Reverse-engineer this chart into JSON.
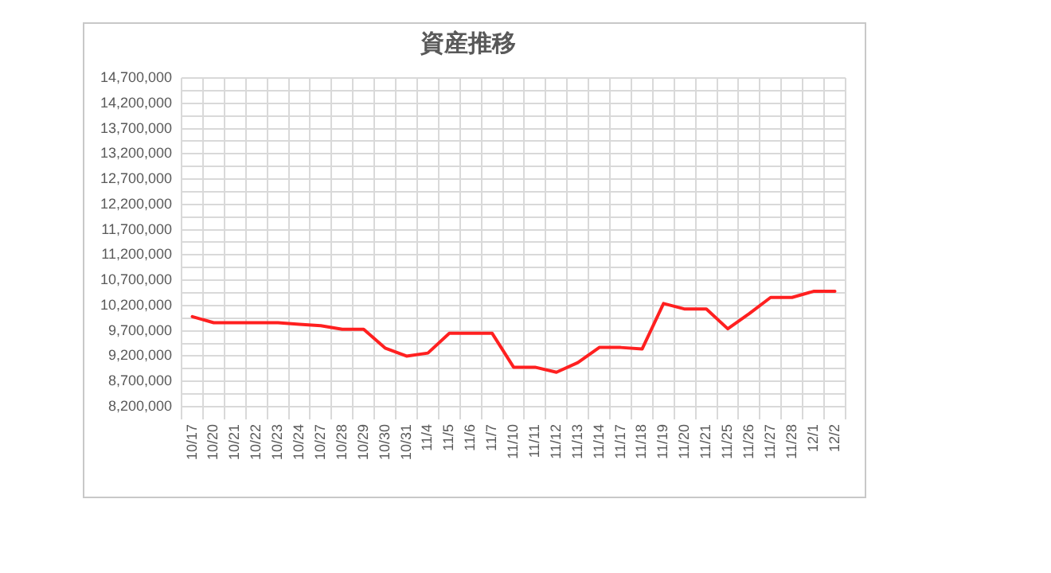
{
  "chart_data": {
    "type": "line",
    "title": "資産推移",
    "categories": [
      "10/17",
      "10/20",
      "10/21",
      "10/22",
      "10/23",
      "10/24",
      "10/27",
      "10/28",
      "10/29",
      "10/30",
      "10/31",
      "11/4",
      "11/5",
      "11/6",
      "11/7",
      "11/10",
      "11/11",
      "11/12",
      "11/13",
      "11/14",
      "11/17",
      "11/18",
      "11/19",
      "11/20",
      "11/21",
      "11/25",
      "11/26",
      "11/27",
      "11/28",
      "12/1",
      "12/2"
    ],
    "series": [
      {
        "color": "#ff2020",
        "values": [
          9980000,
          9860000,
          9860000,
          9860000,
          9860000,
          9830000,
          9800000,
          9730000,
          9730000,
          9360000,
          9200000,
          9260000,
          9650000,
          9650000,
          9650000,
          8980000,
          8980000,
          8880000,
          9070000,
          9370000,
          9370000,
          9340000,
          10240000,
          10130000,
          10130000,
          9740000,
          10040000,
          10360000,
          10360000,
          10480000,
          10480000
        ]
      }
    ],
    "ylim": [
      8200000,
      14700000
    ],
    "yticks": [
      {
        "value": 8200000,
        "label": "8,200,000"
      },
      {
        "value": 8450000,
        "label": null
      },
      {
        "value": 8700000,
        "label": "8,700,000"
      },
      {
        "value": 8950000,
        "label": null
      },
      {
        "value": 9200000,
        "label": "9,200,000"
      },
      {
        "value": 9450000,
        "label": null
      },
      {
        "value": 9700000,
        "label": "9,700,000"
      },
      {
        "value": 9950000,
        "label": null
      },
      {
        "value": 10200000,
        "label": "10,200,000"
      },
      {
        "value": 10450000,
        "label": null
      },
      {
        "value": 10700000,
        "label": "10,700,000"
      },
      {
        "value": 10950000,
        "label": null
      },
      {
        "value": 11200000,
        "label": "11,200,000"
      },
      {
        "value": 11450000,
        "label": null
      },
      {
        "value": 11700000,
        "label": "11,700,000"
      },
      {
        "value": 11950000,
        "label": null
      },
      {
        "value": 12200000,
        "label": "12,200,000"
      },
      {
        "value": 12450000,
        "label": null
      },
      {
        "value": 12700000,
        "label": "12,700,000"
      },
      {
        "value": 12950000,
        "label": null
      },
      {
        "value": 13200000,
        "label": "13,200,000"
      },
      {
        "value": 13450000,
        "label": null
      },
      {
        "value": 13700000,
        "label": "13,700,000"
      },
      {
        "value": 13950000,
        "label": null
      },
      {
        "value": 14200000,
        "label": "14,200,000"
      },
      {
        "value": 14450000,
        "label": null
      },
      {
        "value": 14700000,
        "label": "14,700,000"
      }
    ],
    "grid": true,
    "legend": false,
    "marker": "none",
    "line_style": "solid"
  }
}
